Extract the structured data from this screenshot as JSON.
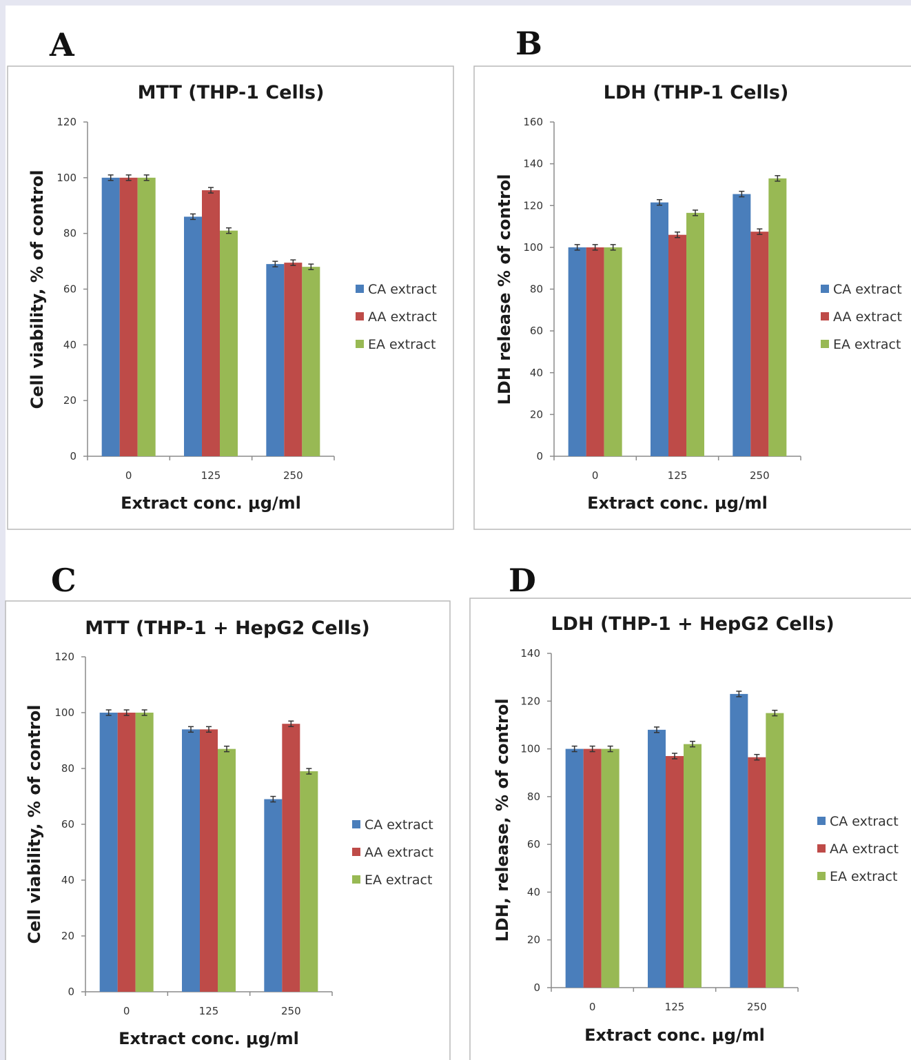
{
  "colors": {
    "background": "#e5e6f1",
    "ca": "#4a7ebb",
    "aa": "#be4b48",
    "ea": "#98b954"
  },
  "panels": [
    {
      "letter": "A"
    },
    {
      "letter": "B"
    },
    {
      "letter": "C"
    },
    {
      "letter": "D"
    }
  ],
  "chart_data": [
    {
      "type": "bar",
      "title": "MTT (THP-1 Cells)",
      "xlabel": "Extract conc. μg/ml",
      "ylabel": "Cell viability, % of control",
      "categories": [
        "0",
        "125",
        "250"
      ],
      "ylim": [
        0,
        120
      ],
      "yticks": [
        "0",
        "20",
        "40",
        "60",
        "80",
        "100",
        "120"
      ],
      "legend_position": "right",
      "series": [
        {
          "name": "CA extract",
          "values": [
            100,
            86,
            69
          ]
        },
        {
          "name": "AA extract",
          "values": [
            100,
            95.5,
            69.5
          ]
        },
        {
          "name": "EA extract",
          "values": [
            100,
            81,
            68
          ]
        }
      ]
    },
    {
      "type": "bar",
      "title": "LDH (THP-1 Cells)",
      "xlabel": "Extract conc. μg/ml",
      "ylabel": "LDH release % of control",
      "categories": [
        "0",
        "125",
        "250"
      ],
      "ylim": [
        0,
        160
      ],
      "yticks": [
        "0",
        "20",
        "40",
        "60",
        "80",
        "100",
        "120",
        "140",
        "160"
      ],
      "legend_position": "right",
      "series": [
        {
          "name": "CA extract",
          "values": [
            100,
            121.5,
            125.5
          ]
        },
        {
          "name": "AA extract",
          "values": [
            100,
            106,
            107.5
          ]
        },
        {
          "name": "EA extract",
          "values": [
            100,
            116.5,
            133
          ]
        }
      ]
    },
    {
      "type": "bar",
      "title": "MTT (THP-1 + HepG2 Cells)",
      "xlabel": "Extract conc. μg/ml",
      "ylabel": "Cell viability, % of control",
      "categories": [
        "0",
        "125",
        "250"
      ],
      "ylim": [
        0,
        120
      ],
      "yticks": [
        "0",
        "20",
        "40",
        "60",
        "80",
        "100",
        "120"
      ],
      "legend_position": "right",
      "series": [
        {
          "name": "CA extract",
          "values": [
            100,
            94,
            69
          ]
        },
        {
          "name": "AA extract",
          "values": [
            100,
            94,
            96
          ]
        },
        {
          "name": "EA extract",
          "values": [
            100,
            87,
            79
          ]
        }
      ]
    },
    {
      "type": "bar",
      "title": "LDH (THP-1 + HepG2 Cells)",
      "xlabel": "Extract conc. μg/ml",
      "ylabel": "LDH, release, % of control",
      "categories": [
        "0",
        "125",
        "250"
      ],
      "ylim": [
        0,
        140
      ],
      "yticks": [
        "0",
        "20",
        "40",
        "60",
        "80",
        "100",
        "120",
        "140"
      ],
      "legend_position": "right",
      "series": [
        {
          "name": "CA extract",
          "values": [
            100,
            108,
            123
          ]
        },
        {
          "name": "AA extract",
          "values": [
            100,
            97,
            96.5
          ]
        },
        {
          "name": "EA extract",
          "values": [
            100,
            102,
            115
          ]
        }
      ]
    }
  ]
}
